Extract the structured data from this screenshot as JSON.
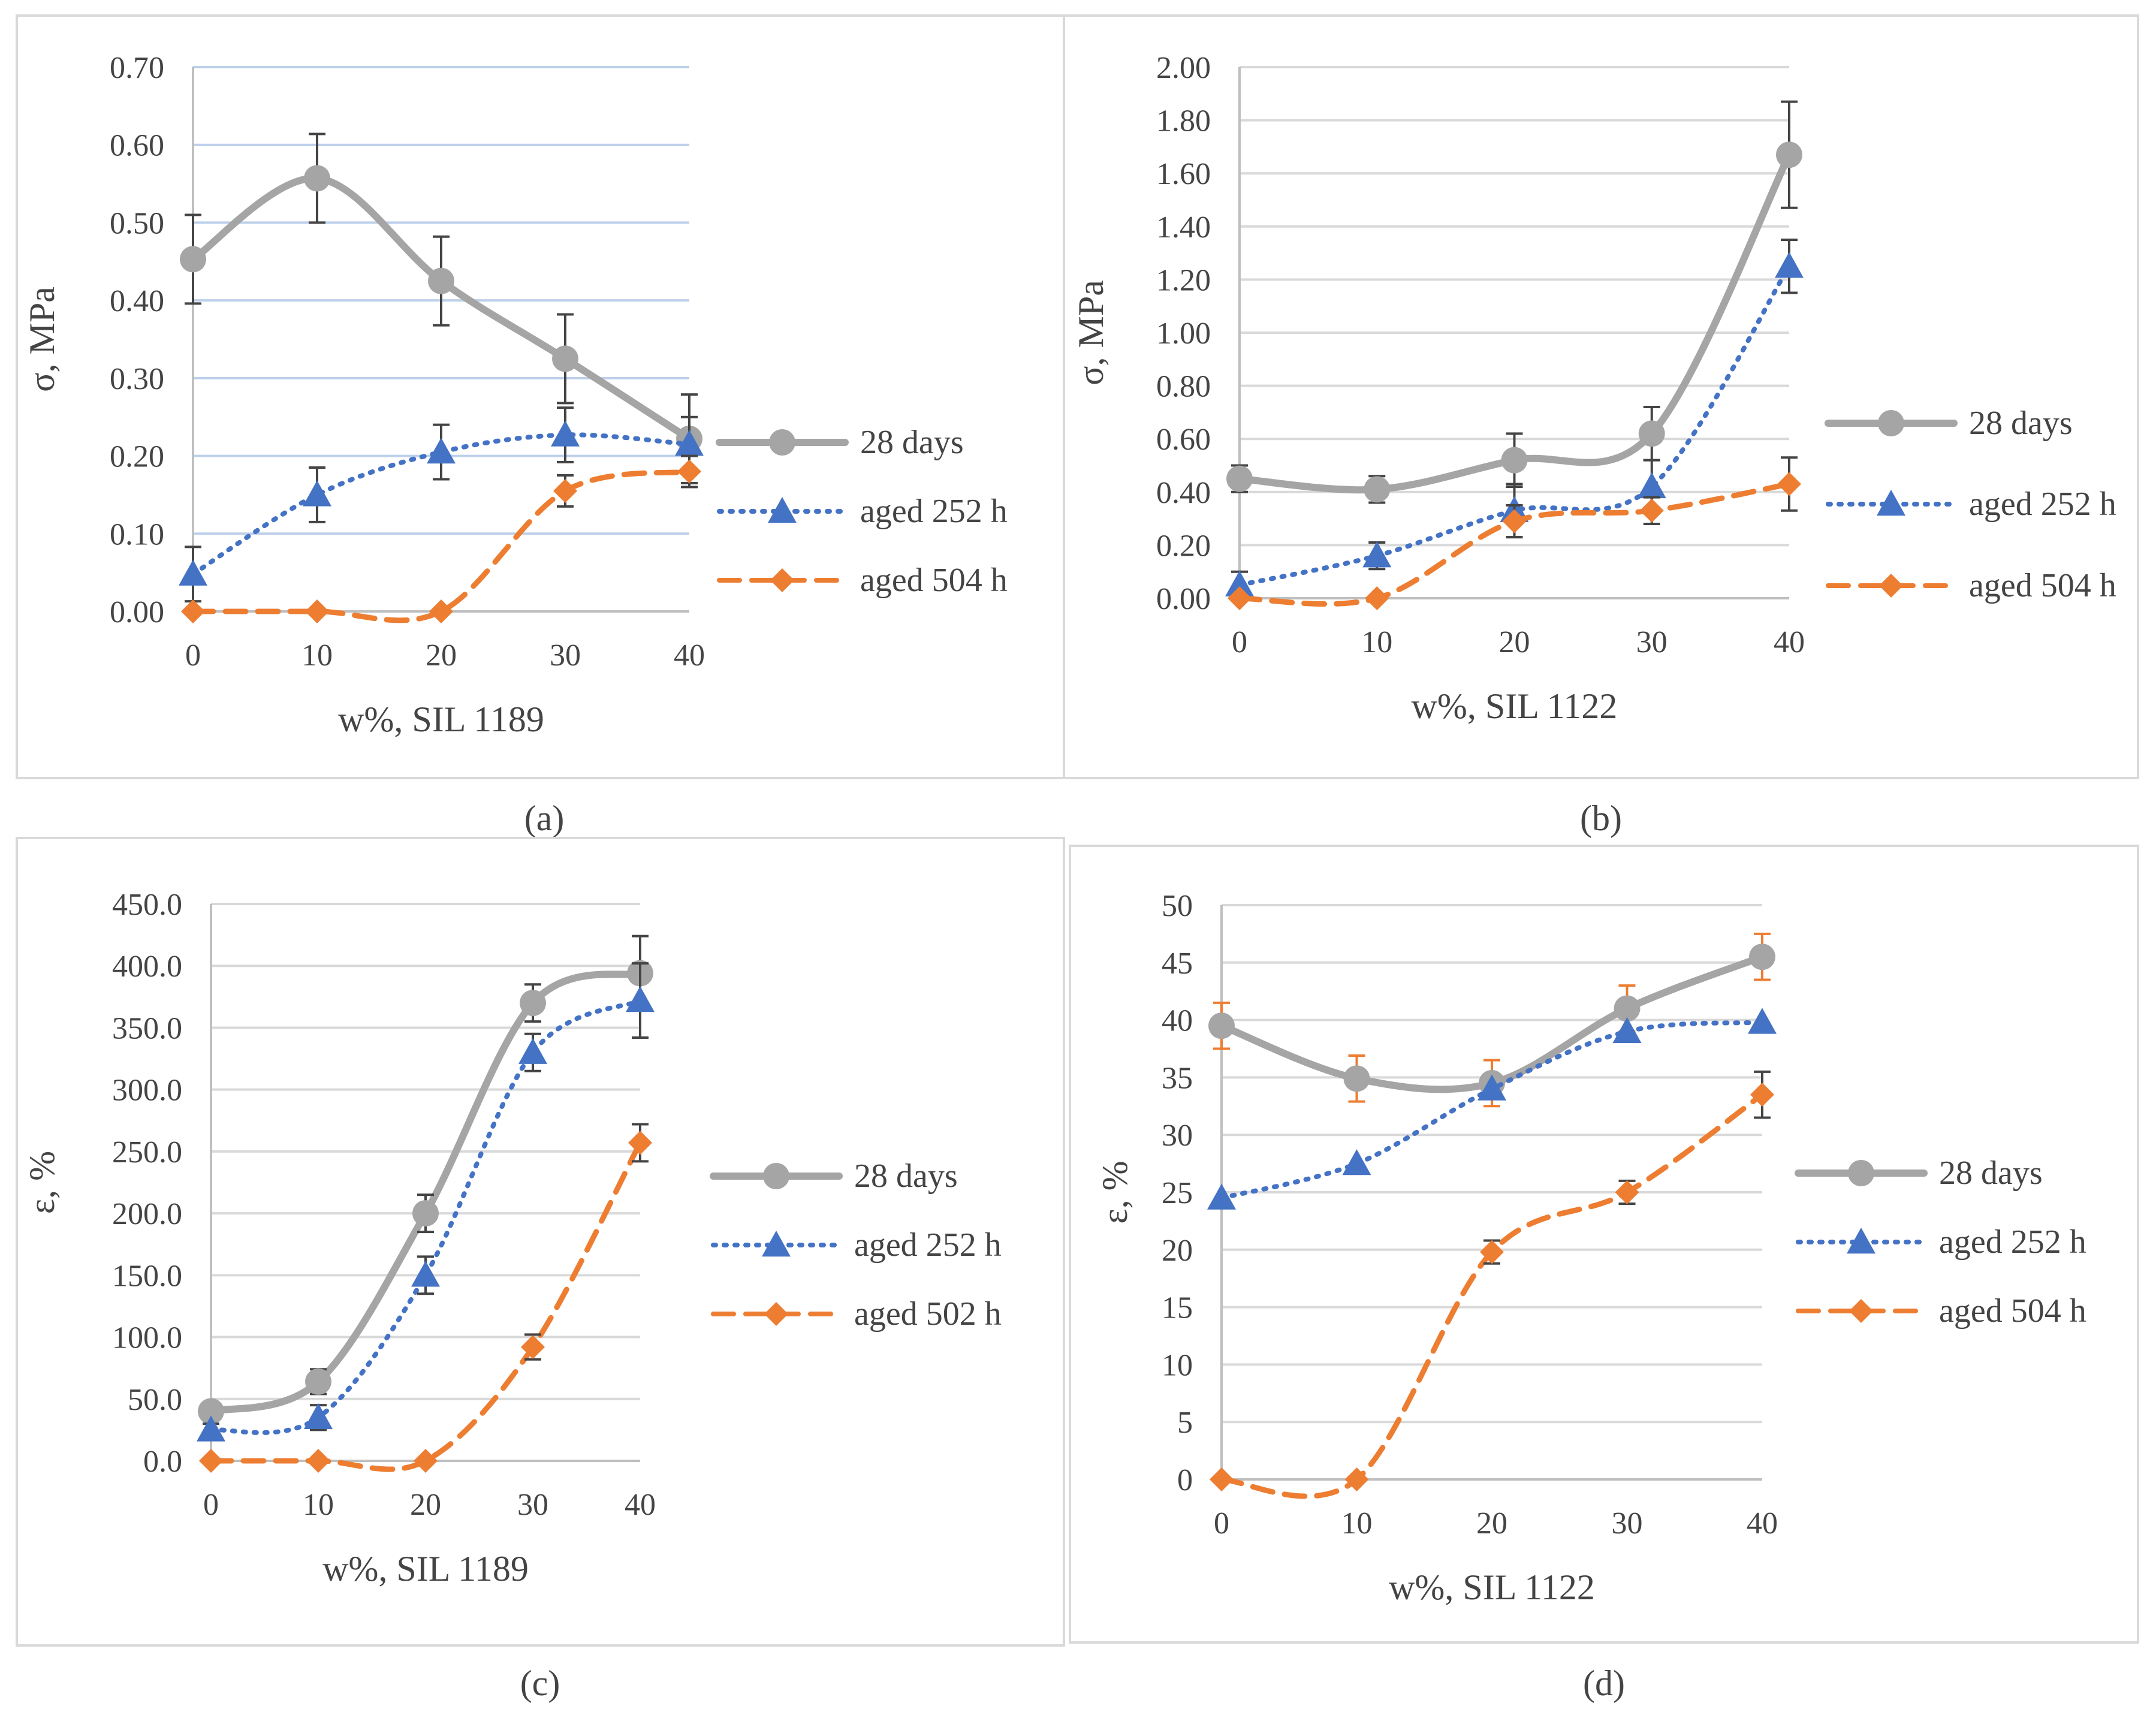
{
  "colors": {
    "days28": "#a5a5a5",
    "aged252": "#4472c4",
    "aged504": "#ed7d31",
    "grid_a": "#bdd0ea",
    "grid": "#d9d9d9",
    "error": "#444444",
    "text": "#444444"
  },
  "chart_data": [
    {
      "panel": "a",
      "caption": "(a)",
      "type": "line",
      "title": "",
      "xlabel": "w%, SIL 1189",
      "ylabel": "σ, MPa",
      "x": [
        0,
        10,
        20,
        30,
        40
      ],
      "x_ticks": [
        "0",
        "10",
        "20",
        "30",
        "40"
      ],
      "ylim": [
        0,
        0.7
      ],
      "y_ticks": [
        "0.00",
        "0.10",
        "0.20",
        "0.30",
        "0.40",
        "0.50",
        "0.60",
        "0.70"
      ],
      "legend": "right",
      "series": [
        {
          "name": "28 days",
          "style": "solid",
          "marker": "circle",
          "values": [
            0.453,
            0.557,
            0.425,
            0.325,
            0.222
          ],
          "errors": [
            0.057,
            0.057,
            0.057,
            0.057,
            0.057
          ]
        },
        {
          "name": "aged 252 h",
          "style": "dotted",
          "marker": "triangle",
          "values": [
            0.048,
            0.15,
            0.205,
            0.227,
            0.215
          ],
          "errors": [
            0.035,
            0.035,
            0.035,
            0.035,
            0.035
          ]
        },
        {
          "name": "aged 504 h",
          "style": "dashed",
          "marker": "diamond",
          "values": [
            0,
            0,
            0,
            0.155,
            0.18
          ],
          "errors": [
            0,
            0,
            0,
            0.02,
            0.02
          ]
        }
      ]
    },
    {
      "panel": "b",
      "caption": "(b)",
      "type": "line",
      "title": "",
      "xlabel": "w%, SIL 1122",
      "ylabel": "σ, MPa",
      "x": [
        0,
        10,
        20,
        30,
        40
      ],
      "x_ticks": [
        "0",
        "10",
        "20",
        "30",
        "40"
      ],
      "ylim": [
        0,
        2.0
      ],
      "y_ticks": [
        "0.00",
        "0.20",
        "0.40",
        "0.60",
        "0.80",
        "1.00",
        "1.20",
        "1.40",
        "1.60",
        "1.80",
        "2.00"
      ],
      "legend": "right",
      "series": [
        {
          "name": "28 days",
          "style": "solid",
          "marker": "circle",
          "values": [
            0.45,
            0.41,
            0.52,
            0.62,
            1.67
          ],
          "errors": [
            0.05,
            0.05,
            0.1,
            0.1,
            0.2
          ]
        },
        {
          "name": "aged 252 h",
          "style": "dotted",
          "marker": "triangle",
          "values": [
            0.05,
            0.16,
            0.33,
            0.42,
            1.25
          ],
          "errors": [
            0.05,
            0.05,
            0.1,
            0.1,
            0.1
          ]
        },
        {
          "name": "aged 504 h",
          "style": "dashed",
          "marker": "diamond",
          "values": [
            0,
            0,
            0.29,
            0.33,
            0.43
          ],
          "errors": [
            0,
            0,
            0.06,
            0.05,
            0.1
          ]
        }
      ]
    },
    {
      "panel": "c",
      "caption": "(c)",
      "type": "line",
      "title": "",
      "xlabel": "w%, SIL 1189",
      "ylabel": "ε, %",
      "x": [
        0,
        10,
        20,
        30,
        40
      ],
      "x_ticks": [
        "0",
        "10",
        "20",
        "30",
        "40"
      ],
      "ylim": [
        0,
        450
      ],
      "y_ticks": [
        "0.0",
        "50.0",
        "100.0",
        "150.0",
        "200.0",
        "250.0",
        "300.0",
        "350.0",
        "400.0",
        "450.0"
      ],
      "legend": "right",
      "series": [
        {
          "name": "28 days",
          "style": "solid",
          "marker": "circle",
          "values": [
            40,
            64,
            200,
            370,
            394
          ],
          "errors": [
            5,
            10,
            15,
            15,
            30
          ]
        },
        {
          "name": "aged 252 h",
          "style": "dotted",
          "marker": "triangle",
          "values": [
            25,
            35,
            150,
            330,
            372
          ],
          "errors": [
            5,
            10,
            15,
            15,
            30
          ]
        },
        {
          "name": "aged 502 h",
          "style": "dashed",
          "marker": "diamond",
          "values": [
            0,
            0,
            0,
            92,
            257
          ],
          "errors": [
            0,
            0,
            0,
            10,
            15
          ]
        }
      ]
    },
    {
      "panel": "d",
      "caption": "(d)",
      "type": "line",
      "title": "",
      "xlabel": "w%, SIL 1122",
      "ylabel": "ε, %",
      "x": [
        0,
        10,
        20,
        30,
        40
      ],
      "x_ticks": [
        "0",
        "10",
        "20",
        "30",
        "40"
      ],
      "ylim": [
        0,
        50
      ],
      "y_ticks": [
        "0",
        "5",
        "10",
        "15",
        "20",
        "25",
        "30",
        "35",
        "40",
        "45",
        "50"
      ],
      "legend": "right",
      "series": [
        {
          "name": "28 days",
          "style": "solid",
          "marker": "circle",
          "values": [
            39.5,
            34.9,
            34.5,
            41,
            45.5
          ],
          "errors": [
            2,
            2,
            2,
            2,
            2
          ]
        },
        {
          "name": "aged 252 h",
          "style": "dotted",
          "marker": "triangle",
          "values": [
            24.5,
            27.5,
            34,
            39,
            39.8
          ],
          "errors": [
            0,
            0,
            0,
            0,
            0
          ]
        },
        {
          "name": "aged 504 h",
          "style": "dashed",
          "marker": "diamond",
          "values": [
            0,
            0,
            19.8,
            25,
            33.5
          ],
          "errors": [
            0,
            0,
            1,
            1,
            2
          ]
        }
      ]
    }
  ]
}
